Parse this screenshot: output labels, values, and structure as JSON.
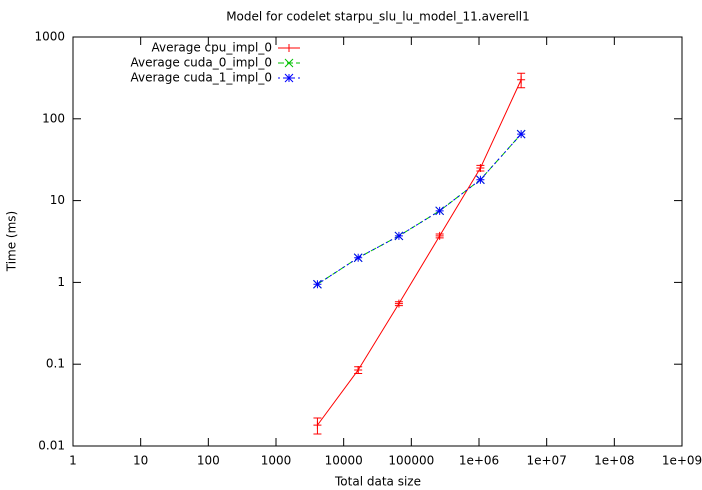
{
  "chart_data": {
    "type": "line",
    "title": "Model for codelet starpu_slu_lu_model_11.averell1",
    "x_label": "Total data size",
    "y_label": "Time (ms)",
    "log_x": true,
    "log_y": true,
    "legend": "top-left",
    "x": [
      4096,
      16384,
      65536,
      262144,
      1048576,
      4194304
    ],
    "series": [
      {
        "name": "Average cpu_impl_0",
        "color": "#ff0000",
        "marker": "+",
        "dash": "none",
        "values": [
          0.018,
          0.085,
          0.55,
          3.7,
          25,
          300
        ],
        "errors": [
          0.004,
          0.008,
          0.03,
          0.2,
          2,
          60
        ]
      },
      {
        "name": "Average cuda_0_impl_0",
        "color": "#00c000",
        "marker": "x",
        "dash": "6,3",
        "values": [
          0.95,
          2.0,
          3.7,
          7.5,
          18,
          65
        ]
      },
      {
        "name": "Average cuda_1_impl_0",
        "color": "#0000ff",
        "marker": "*",
        "dash": "2,3",
        "values": [
          0.95,
          2.0,
          3.7,
          7.5,
          18,
          65
        ]
      }
    ],
    "xlim": [
      1,
      1000000000
    ],
    "ylim": [
      0.01,
      1000
    ],
    "xticks": [
      1,
      10,
      100,
      1000,
      10000,
      100000,
      {
        "value": 1000000,
        "label": "1e+06"
      },
      {
        "value": 10000000,
        "label": "1e+07"
      },
      {
        "value": 100000000,
        "label": "1e+08"
      },
      {
        "value": 1000000000,
        "label": "1e+09"
      }
    ],
    "yticks": [
      0.01,
      0.1,
      1,
      10,
      100,
      1000
    ]
  }
}
